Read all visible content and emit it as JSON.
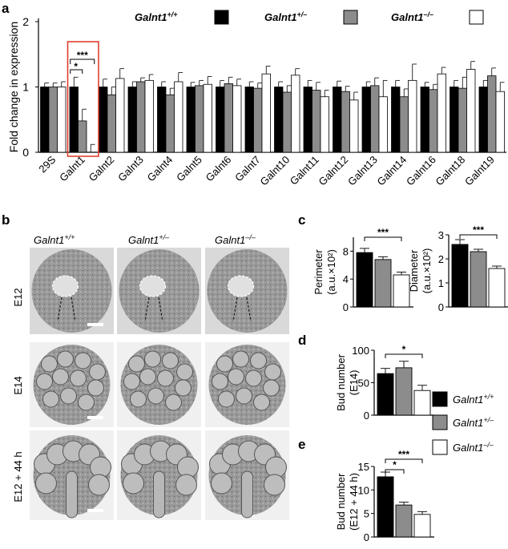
{
  "panels": {
    "a": "a",
    "b": "b",
    "c": "c",
    "d": "d",
    "e": "e"
  },
  "genotypes": [
    {
      "label": "Galnt1",
      "sup": "+/+",
      "fill": "#000000"
    },
    {
      "label": "Galnt1",
      "sup": "+/–",
      "fill": "#8c8c8c"
    },
    {
      "label": "Galnt1",
      "sup": "–/–",
      "fill": "#ffffff"
    }
  ],
  "stages": [
    "E12",
    "E14",
    "E12 + 44 h"
  ],
  "chart_data": [
    {
      "panel": "a",
      "type": "bar",
      "ylabel": "Fold change in expression",
      "ylim": [
        0,
        2
      ],
      "yticks": [
        0,
        1,
        2
      ],
      "categories": [
        "29S",
        "Galnt1",
        "Galnt2",
        "Galnt3",
        "Galnt4",
        "Galnt5",
        "Galnt6",
        "Galnt7",
        "Galnt10",
        "Galnt11",
        "Galnt12",
        "Galnt13",
        "Galnt14",
        "Galnt16",
        "Galnt18",
        "Galnt19"
      ],
      "series": [
        {
          "name": "Galnt1 +/+",
          "fill": "#000000",
          "values": [
            1.0,
            1.0,
            1.0,
            1.0,
            1.0,
            1.0,
            1.0,
            1.0,
            1.0,
            1.0,
            1.0,
            1.0,
            1.0,
            1.0,
            1.0,
            1.0
          ],
          "errors": [
            0.06,
            0.15,
            0.12,
            0.08,
            0.08,
            0.07,
            0.1,
            0.08,
            0.08,
            0.1,
            0.09,
            0.08,
            0.1,
            0.07,
            0.1,
            0.1
          ]
        },
        {
          "name": "Galnt1 +/–",
          "fill": "#8c8c8c",
          "values": [
            1.0,
            0.48,
            0.88,
            1.08,
            0.88,
            1.02,
            1.05,
            0.98,
            0.92,
            0.95,
            0.93,
            1.02,
            0.85,
            0.96,
            0.98,
            1.17
          ],
          "errors": [
            0.06,
            0.18,
            0.12,
            0.06,
            0.1,
            0.08,
            0.1,
            0.08,
            0.1,
            0.12,
            0.08,
            0.12,
            0.12,
            0.08,
            0.17,
            0.12
          ]
        },
        {
          "name": "Galnt1 –/–",
          "fill": "#ffffff",
          "values": [
            1.0,
            0.0,
            1.13,
            1.1,
            1.08,
            1.04,
            1.02,
            1.2,
            1.18,
            0.85,
            0.8,
            0.85,
            1.1,
            1.2,
            1.27,
            0.93
          ],
          "errors": [
            0.08,
            0.12,
            0.15,
            0.09,
            0.14,
            0.12,
            0.1,
            0.12,
            0.1,
            0.1,
            0.12,
            0.25,
            0.25,
            0.1,
            0.12,
            0.14
          ]
        }
      ],
      "annotations": [
        "***",
        "*"
      ]
    },
    {
      "panel": "c",
      "type": "bar",
      "ylabel": "Perimeter",
      "ylabel2": "(a.u.×10²)",
      "ylim": [
        0,
        10
      ],
      "yticks": [
        0,
        4,
        8
      ],
      "values": [
        7.8,
        6.8,
        4.6
      ],
      "errors": [
        0.6,
        0.4,
        0.4
      ],
      "annotations": [
        "***"
      ]
    },
    {
      "panel": "c",
      "type": "bar",
      "ylabel": "Diameter",
      "ylabel2": "(a.u.×10²)",
      "ylim": [
        0,
        3
      ],
      "yticks": [
        0,
        1,
        2,
        3
      ],
      "values": [
        2.6,
        2.3,
        1.6
      ],
      "errors": [
        0.2,
        0.1,
        0.1
      ],
      "annotations": [
        "***"
      ]
    },
    {
      "panel": "d",
      "type": "bar",
      "ylabel": "Bud number",
      "ylabel2": "(E14)",
      "ylim": [
        0,
        100
      ],
      "yticks": [
        0,
        50,
        100
      ],
      "values": [
        64,
        73,
        38
      ],
      "errors": [
        8,
        10,
        8
      ],
      "annotations": [
        "*"
      ]
    },
    {
      "panel": "e",
      "type": "bar",
      "ylabel": "Bud number",
      "ylabel2": "(E12 + 44 h)",
      "ylim": [
        0,
        15
      ],
      "yticks": [
        0,
        5,
        10,
        15
      ],
      "values": [
        12.8,
        6.8,
        4.8
      ],
      "errors": [
        1.0,
        0.6,
        0.6
      ],
      "annotations": [
        "*",
        "***"
      ]
    }
  ]
}
